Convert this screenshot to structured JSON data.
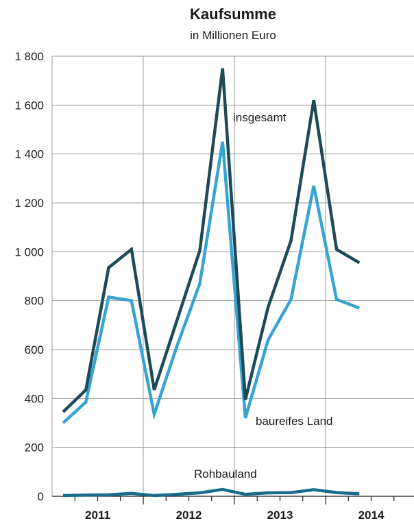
{
  "chart_data": {
    "type": "line",
    "title": "Kaufsumme",
    "subtitle": "in Millionen Euro",
    "xlabel": "",
    "ylabel": "",
    "ylim": [
      0,
      1800
    ],
    "y_ticks": [
      0,
      200,
      400,
      600,
      800,
      1000,
      1200,
      1400,
      1600,
      1800
    ],
    "y_tick_labels": [
      "0",
      "200",
      "400",
      "600",
      "800",
      "1 000",
      "1 200",
      "1 400",
      "1 600",
      "1 800"
    ],
    "x": [
      "2011 Q1",
      "2011 Q2",
      "2011 Q3",
      "2011 Q4",
      "2012 Q1",
      "2012 Q2",
      "2012 Q3",
      "2012 Q4",
      "2013 Q1",
      "2013 Q2",
      "2013 Q3",
      "2013 Q4",
      "2014 Q1",
      "2014 Q2",
      "2014 Q3"
    ],
    "year_labels": [
      "2011",
      "2012",
      "2013",
      "2014"
    ],
    "grid": true,
    "legend": "none",
    "series": [
      {
        "name": "insgesamt",
        "color": "#1d4a57",
        "values": [
          345,
          435,
          935,
          1010,
          435,
          720,
          1005,
          1750,
          395,
          775,
          1045,
          1620,
          1010,
          955,
          null
        ]
      },
      {
        "name": "baureifes Land",
        "color": "#36a3d3",
        "values": [
          300,
          385,
          815,
          800,
          335,
          615,
          870,
          1450,
          320,
          640,
          805,
          1270,
          805,
          770,
          null
        ]
      },
      {
        "name": "Rohbauland",
        "color": "#186c8c",
        "values": [
          3,
          5,
          6,
          12,
          3,
          8,
          14,
          28,
          8,
          14,
          15,
          27,
          15,
          10,
          null
        ]
      }
    ]
  }
}
